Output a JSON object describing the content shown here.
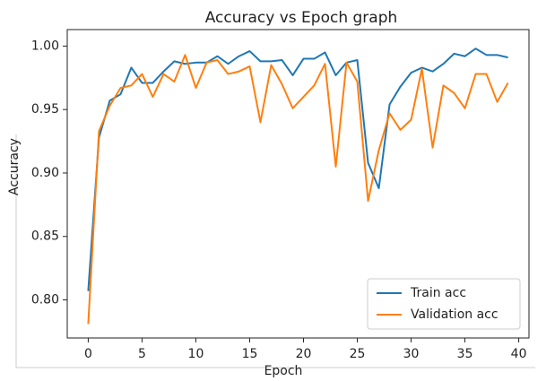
{
  "chart_data": {
    "type": "line",
    "title": "Accuracy vs Epoch graph",
    "x_label": "Epoch",
    "y_label": "Accuracy",
    "x": [
      0,
      1,
      2,
      3,
      4,
      5,
      6,
      7,
      8,
      9,
      10,
      11,
      12,
      13,
      14,
      15,
      16,
      17,
      18,
      19,
      20,
      21,
      22,
      23,
      24,
      25,
      26,
      27,
      28,
      29,
      30,
      31,
      32,
      33,
      34,
      35,
      36,
      37,
      38,
      39
    ],
    "series": [
      {
        "name": "Train acc",
        "color": "#1f77b4",
        "values": [
          0.807,
          0.928,
          0.957,
          0.962,
          0.983,
          0.971,
          0.971,
          0.98,
          0.988,
          0.986,
          0.987,
          0.987,
          0.992,
          0.986,
          0.992,
          0.996,
          0.988,
          0.988,
          0.989,
          0.977,
          0.99,
          0.99,
          0.995,
          0.977,
          0.987,
          0.989,
          0.908,
          0.888,
          0.954,
          0.968,
          0.979,
          0.983,
          0.98,
          0.986,
          0.994,
          0.992,
          0.998,
          0.993,
          0.993,
          0.991
        ]
      },
      {
        "name": "Validation acc",
        "color": "#ff7f0e",
        "values": [
          0.781,
          0.933,
          0.953,
          0.967,
          0.969,
          0.978,
          0.96,
          0.978,
          0.972,
          0.993,
          0.967,
          0.987,
          0.989,
          0.978,
          0.98,
          0.984,
          0.94,
          0.985,
          0.97,
          0.951,
          0.96,
          0.969,
          0.986,
          0.905,
          0.987,
          0.972,
          0.878,
          0.918,
          0.947,
          0.934,
          0.942,
          0.982,
          0.92,
          0.969,
          0.963,
          0.951,
          0.978,
          0.978,
          0.956,
          0.971
        ]
      }
    ],
    "xlim": [
      -1.95,
      40.95
    ],
    "xticks": [
      0,
      5,
      10,
      15,
      20,
      25,
      30,
      35,
      40
    ],
    "ylim": [
      0.77,
      1.013
    ],
    "yticks": [
      {
        "value": 0.8,
        "label": "0.80"
      },
      {
        "value": 0.85,
        "label": "0.85"
      },
      {
        "value": 0.9,
        "label": "0.90"
      },
      {
        "value": 0.95,
        "label": "0.95"
      },
      {
        "value": 1.0,
        "label": "1.00"
      }
    ],
    "legend": "lower right",
    "grid": false
  }
}
